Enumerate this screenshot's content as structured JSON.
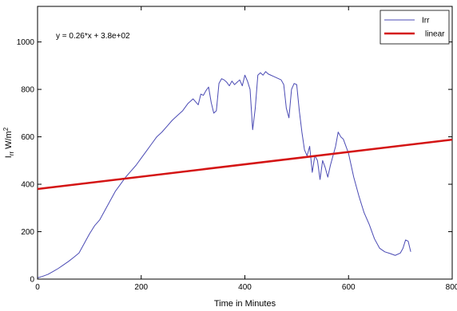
{
  "chart_data": {
    "type": "line",
    "title": "",
    "xlabel": "Time in Minutes",
    "ylabel": {
      "base": "I",
      "base_sub": "rr",
      "unit": "W/m",
      "unit_sup": "2"
    },
    "xlim": [
      0,
      800
    ],
    "ylim": [
      0,
      1150
    ],
    "xticks": [
      0,
      200,
      400,
      600,
      800
    ],
    "yticks": [
      0,
      200,
      400,
      600,
      800,
      1000
    ],
    "grid": false,
    "legend_position": "top-right",
    "annotation": "y = 0.26*x + 3.8e+02",
    "series": [
      {
        "name": "Irr",
        "color": "#4a4ab4",
        "x": [
          0,
          10,
          20,
          30,
          40,
          50,
          60,
          70,
          80,
          90,
          100,
          110,
          120,
          130,
          140,
          150,
          160,
          170,
          180,
          190,
          200,
          210,
          220,
          230,
          240,
          250,
          260,
          270,
          280,
          290,
          300,
          310,
          315,
          320,
          325,
          330,
          335,
          340,
          345,
          350,
          355,
          360,
          365,
          370,
          375,
          380,
          385,
          390,
          395,
          400,
          405,
          410,
          415,
          420,
          425,
          430,
          435,
          440,
          445,
          450,
          455,
          460,
          465,
          470,
          475,
          480,
          485,
          490,
          495,
          500,
          505,
          510,
          515,
          520,
          525,
          530,
          535,
          540,
          545,
          550,
          555,
          560,
          565,
          570,
          575,
          580,
          585,
          590,
          595,
          600,
          605,
          610,
          615,
          620,
          630,
          640,
          650,
          660,
          670,
          680,
          690,
          700,
          705,
          710,
          715,
          720
        ],
        "y": [
          5,
          12,
          20,
          32,
          45,
          60,
          75,
          92,
          110,
          150,
          190,
          225,
          250,
          290,
          330,
          370,
          400,
          430,
          455,
          480,
          510,
          540,
          570,
          600,
          620,
          645,
          670,
          690,
          710,
          740,
          760,
          735,
          780,
          775,
          795,
          810,
          745,
          700,
          710,
          825,
          845,
          840,
          830,
          815,
          835,
          820,
          830,
          840,
          815,
          860,
          835,
          800,
          630,
          720,
          860,
          870,
          860,
          875,
          865,
          860,
          855,
          850,
          845,
          840,
          820,
          720,
          680,
          800,
          825,
          820,
          710,
          620,
          545,
          520,
          560,
          450,
          520,
          500,
          420,
          500,
          470,
          430,
          480,
          520,
          560,
          620,
          600,
          590,
          560,
          530,
          480,
          430,
          390,
          350,
          280,
          230,
          170,
          130,
          115,
          108,
          100,
          110,
          130,
          165,
          160,
          115
        ],
        "line_width": 1
      },
      {
        "name": "linear",
        "color": "#d41414",
        "x": [
          0,
          800
        ],
        "y": [
          380,
          588
        ],
        "line_width": 2.5
      }
    ]
  }
}
